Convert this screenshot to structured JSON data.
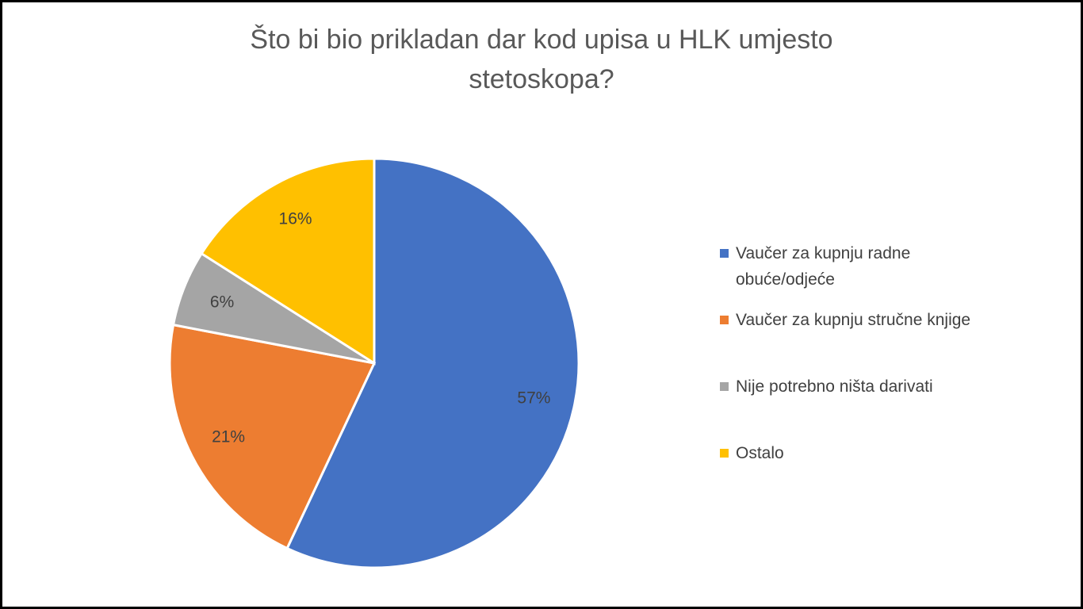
{
  "chart_data": {
    "type": "pie",
    "title": "Što bi bio prikladan dar kod upisa u HLK umjesto stetoskopa?",
    "categories": [
      "Vaučer za kupnju radne obuće/odjeće",
      "Vaučer za kupnju stručne knjige",
      "Nije potrebno ništa darivati",
      "Ostalo"
    ],
    "values": [
      57,
      21,
      6,
      16
    ],
    "value_labels": [
      "57%",
      "21%",
      "6%",
      "16%"
    ],
    "colors": [
      "#4472c4",
      "#ed7d31",
      "#a5a5a5",
      "#ffc000"
    ],
    "legend": "right"
  }
}
